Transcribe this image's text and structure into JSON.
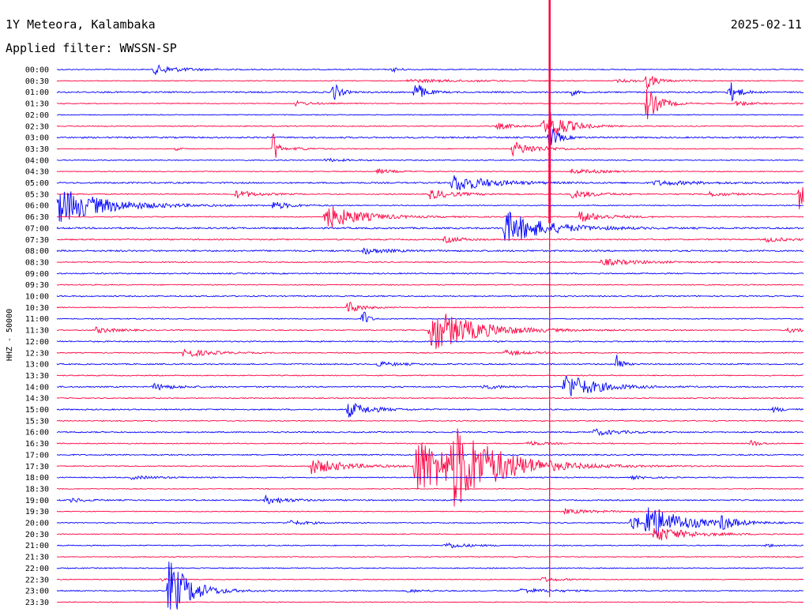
{
  "header": {
    "station": "1Y Meteora, Kalambaka",
    "filter": "Applied filter: WWSSN-SP",
    "date": "2025-02-11"
  },
  "chart_data": {
    "type": "line",
    "ylabel": "HHZ - 50000",
    "colors": {
      "even_hour": "#0000ff",
      "half_hour": "#ff0040"
    },
    "row_labels": [
      "00:00",
      "00:30",
      "01:00",
      "01:30",
      "02:00",
      "02:30",
      "03:00",
      "03:30",
      "04:00",
      "04:30",
      "05:00",
      "05:30",
      "06:00",
      "06:30",
      "07:00",
      "07:30",
      "08:00",
      "08:30",
      "09:00",
      "09:30",
      "10:00",
      "10:30",
      "11:00",
      "11:30",
      "12:00",
      "12:30",
      "13:00",
      "13:30",
      "14:00",
      "14:30",
      "15:00",
      "15:30",
      "16:00",
      "16:30",
      "17:00",
      "17:30",
      "18:00",
      "18:30",
      "19:00",
      "19:30",
      "20:00",
      "20:30",
      "21:00",
      "21:30",
      "22:00",
      "22:30",
      "23:00",
      "23:30"
    ],
    "noise": [
      1.2,
      1,
      1.8,
      1,
      1,
      1.2,
      1.8,
      1,
      1.2,
      1,
      1.8,
      1.2,
      1.2,
      1.2,
      2,
      1.5,
      2,
      1.2,
      1.5,
      1.2,
      1.5,
      1.2,
      1.2,
      1.2,
      1.5,
      1.2,
      1.5,
      1.2,
      1.5,
      1.2,
      1.5,
      1.2,
      1.5,
      1.2,
      1.5,
      1.2,
      1.2,
      1,
      1.5,
      1,
      1.2,
      1,
      1.2,
      1,
      1.2,
      1,
      1.2,
      1
    ],
    "events": [
      {
        "row": 0,
        "t": 0.13,
        "amp": 6,
        "dur": 0.06
      },
      {
        "row": 0,
        "t": 0.45,
        "amp": 3,
        "dur": 0.02
      },
      {
        "row": 1,
        "t": 0.47,
        "amp": 2,
        "dur": 0.15
      },
      {
        "row": 1,
        "t": 0.75,
        "amp": 1.5,
        "dur": 0.1
      },
      {
        "row": 2,
        "t": 0.37,
        "amp": 14,
        "dur": 0.015
      },
      {
        "row": 2,
        "t": 0.48,
        "amp": 15,
        "dur": 0.02
      },
      {
        "row": 2,
        "t": 0.69,
        "amp": 4,
        "dur": 0.01
      },
      {
        "row": 2,
        "t": 0.9,
        "amp": 16,
        "dur": 0.02
      },
      {
        "row": 1,
        "t": 0.79,
        "amp": 10,
        "dur": 0.02
      },
      {
        "row": 3,
        "t": 0.32,
        "amp": 3,
        "dur": 0.04
      },
      {
        "row": 3,
        "t": 0.79,
        "amp": 22,
        "dur": 0.03
      },
      {
        "row": 3,
        "t": 0.91,
        "amp": 3,
        "dur": 0.04
      },
      {
        "row": 5,
        "t": 0.59,
        "amp": 4,
        "dur": 0.04
      },
      {
        "row": 5,
        "t": 0.65,
        "amp": 8,
        "dur": 0.05
      },
      {
        "row": 5,
        "t": 0.66,
        "amp": 14,
        "dur": 0.04
      },
      {
        "row": 6,
        "t": 0.66,
        "amp": 16,
        "dur": 0.02
      },
      {
        "row": 7,
        "t": 0.61,
        "amp": 9,
        "dur": 0.06
      },
      {
        "row": 7,
        "t": 0.16,
        "amp": 2,
        "dur": 0.01
      },
      {
        "row": 7,
        "t": 0.29,
        "amp": 25,
        "dur": 0.01
      },
      {
        "row": 7,
        "t": 0.32,
        "amp": 2,
        "dur": 0.04
      },
      {
        "row": 8,
        "t": 0.36,
        "amp": 2,
        "dur": 0.05
      },
      {
        "row": 9,
        "t": 0.43,
        "amp": 3,
        "dur": 0.04
      },
      {
        "row": 9,
        "t": 0.69,
        "amp": 3,
        "dur": 0.08
      },
      {
        "row": 10,
        "t": 0.53,
        "amp": 12,
        "dur": 0.08
      },
      {
        "row": 10,
        "t": 0.8,
        "amp": 3,
        "dur": 0.1
      },
      {
        "row": 11,
        "t": 0.24,
        "amp": 5,
        "dur": 0.05
      },
      {
        "row": 11,
        "t": 0.5,
        "amp": 6,
        "dur": 0.06
      },
      {
        "row": 11,
        "t": 0.69,
        "amp": 5,
        "dur": 0.06
      },
      {
        "row": 11,
        "t": 0.87,
        "amp": 3,
        "dur": 0.06
      },
      {
        "row": 11,
        "t": 0.995,
        "amp": 24,
        "dur": 0.01
      },
      {
        "row": 12,
        "t": 0.0,
        "amp": 24,
        "dur": 0.11
      },
      {
        "row": 12,
        "t": 0.29,
        "amp": 5,
        "dur": 0.04
      },
      {
        "row": 13,
        "t": 0.36,
        "amp": 16,
        "dur": 0.08
      },
      {
        "row": 13,
        "t": 0.7,
        "amp": 7,
        "dur": 0.06
      },
      {
        "row": 14,
        "t": 0.6,
        "amp": 22,
        "dur": 0.09
      },
      {
        "row": 15,
        "t": 0.52,
        "amp": 4,
        "dur": 0.04
      },
      {
        "row": 15,
        "t": 0.95,
        "amp": 3,
        "dur": 0.05
      },
      {
        "row": 17,
        "t": 0.73,
        "amp": 4,
        "dur": 0.1
      },
      {
        "row": 16,
        "t": 0.41,
        "amp": 4,
        "dur": 0.05
      },
      {
        "row": 21,
        "t": 0.39,
        "amp": 8,
        "dur": 0.03
      },
      {
        "row": 22,
        "t": 0.41,
        "amp": 15,
        "dur": 0.01
      },
      {
        "row": 23,
        "t": 0.05,
        "amp": 4,
        "dur": 0.05
      },
      {
        "row": 23,
        "t": 0.5,
        "amp": 30,
        "dur": 0.1
      },
      {
        "row": 23,
        "t": 0.98,
        "amp": 3,
        "dur": 0.05
      },
      {
        "row": 25,
        "t": 0.17,
        "amp": 6,
        "dur": 0.06
      },
      {
        "row": 25,
        "t": 0.6,
        "amp": 3,
        "dur": 0.06
      },
      {
        "row": 26,
        "t": 0.43,
        "amp": 3,
        "dur": 0.05
      },
      {
        "row": 26,
        "t": 0.75,
        "amp": 16,
        "dur": 0.01
      },
      {
        "row": 28,
        "t": 0.13,
        "amp": 4,
        "dur": 0.05
      },
      {
        "row": 28,
        "t": 0.57,
        "amp": 3,
        "dur": 0.05
      },
      {
        "row": 28,
        "t": 0.68,
        "amp": 18,
        "dur": 0.07
      },
      {
        "row": 30,
        "t": 0.39,
        "amp": 10,
        "dur": 0.05
      },
      {
        "row": 30,
        "t": 0.96,
        "amp": 3,
        "dur": 0.03
      },
      {
        "row": 32,
        "t": 0.72,
        "amp": 4,
        "dur": 0.06
      },
      {
        "row": 33,
        "t": 0.63,
        "amp": 3,
        "dur": 0.04
      },
      {
        "row": 33,
        "t": 0.93,
        "amp": 4,
        "dur": 0.02
      },
      {
        "row": 35,
        "t": 0.34,
        "amp": 10,
        "dur": 0.08
      },
      {
        "row": 35,
        "t": 0.48,
        "amp": 38,
        "dur": 0.12
      },
      {
        "row": 35,
        "t": 0.53,
        "amp": 40,
        "dur": 0.1
      },
      {
        "row": 36,
        "t": 0.1,
        "amp": 2,
        "dur": 0.08
      },
      {
        "row": 36,
        "t": 0.77,
        "amp": 2,
        "dur": 0.04
      },
      {
        "row": 38,
        "t": 0.02,
        "amp": 3,
        "dur": 0.03
      },
      {
        "row": 38,
        "t": 0.28,
        "amp": 5,
        "dur": 0.05
      },
      {
        "row": 39,
        "t": 0.68,
        "amp": 3,
        "dur": 0.08
      },
      {
        "row": 40,
        "t": 0.31,
        "amp": 3,
        "dur": 0.05
      },
      {
        "row": 40,
        "t": 0.77,
        "amp": 14,
        "dur": 0.02
      },
      {
        "row": 40,
        "t": 0.79,
        "amp": 24,
        "dur": 0.08
      },
      {
        "row": 40,
        "t": 0.89,
        "amp": 9,
        "dur": 0.03
      },
      {
        "row": 41,
        "t": 0.8,
        "amp": 10,
        "dur": 0.08
      },
      {
        "row": 42,
        "t": 0.52,
        "amp": 4,
        "dur": 0.05
      },
      {
        "row": 42,
        "t": 0.95,
        "amp": 2,
        "dur": 0.03
      },
      {
        "row": 45,
        "t": 0.14,
        "amp": 2,
        "dur": 0.03
      },
      {
        "row": 45,
        "t": 0.65,
        "amp": 3,
        "dur": 0.04
      },
      {
        "row": 46,
        "t": 0.15,
        "amp": 40,
        "dur": 0.05
      },
      {
        "row": 46,
        "t": 0.47,
        "amp": 2,
        "dur": 0.04
      },
      {
        "row": 46,
        "t": 0.62,
        "amp": 3,
        "dur": 0.08
      }
    ],
    "teleseismic": {
      "t": 0.66,
      "rows": [
        5,
        6,
        7,
        8,
        9,
        10,
        11,
        12,
        13,
        14,
        15,
        16,
        17,
        18,
        19,
        20,
        21,
        22,
        23,
        24,
        25,
        26,
        27,
        28,
        29,
        30,
        31,
        32,
        33,
        34,
        35,
        36,
        37,
        38,
        39,
        40,
        41,
        42,
        43,
        44,
        45,
        46
      ]
    }
  }
}
